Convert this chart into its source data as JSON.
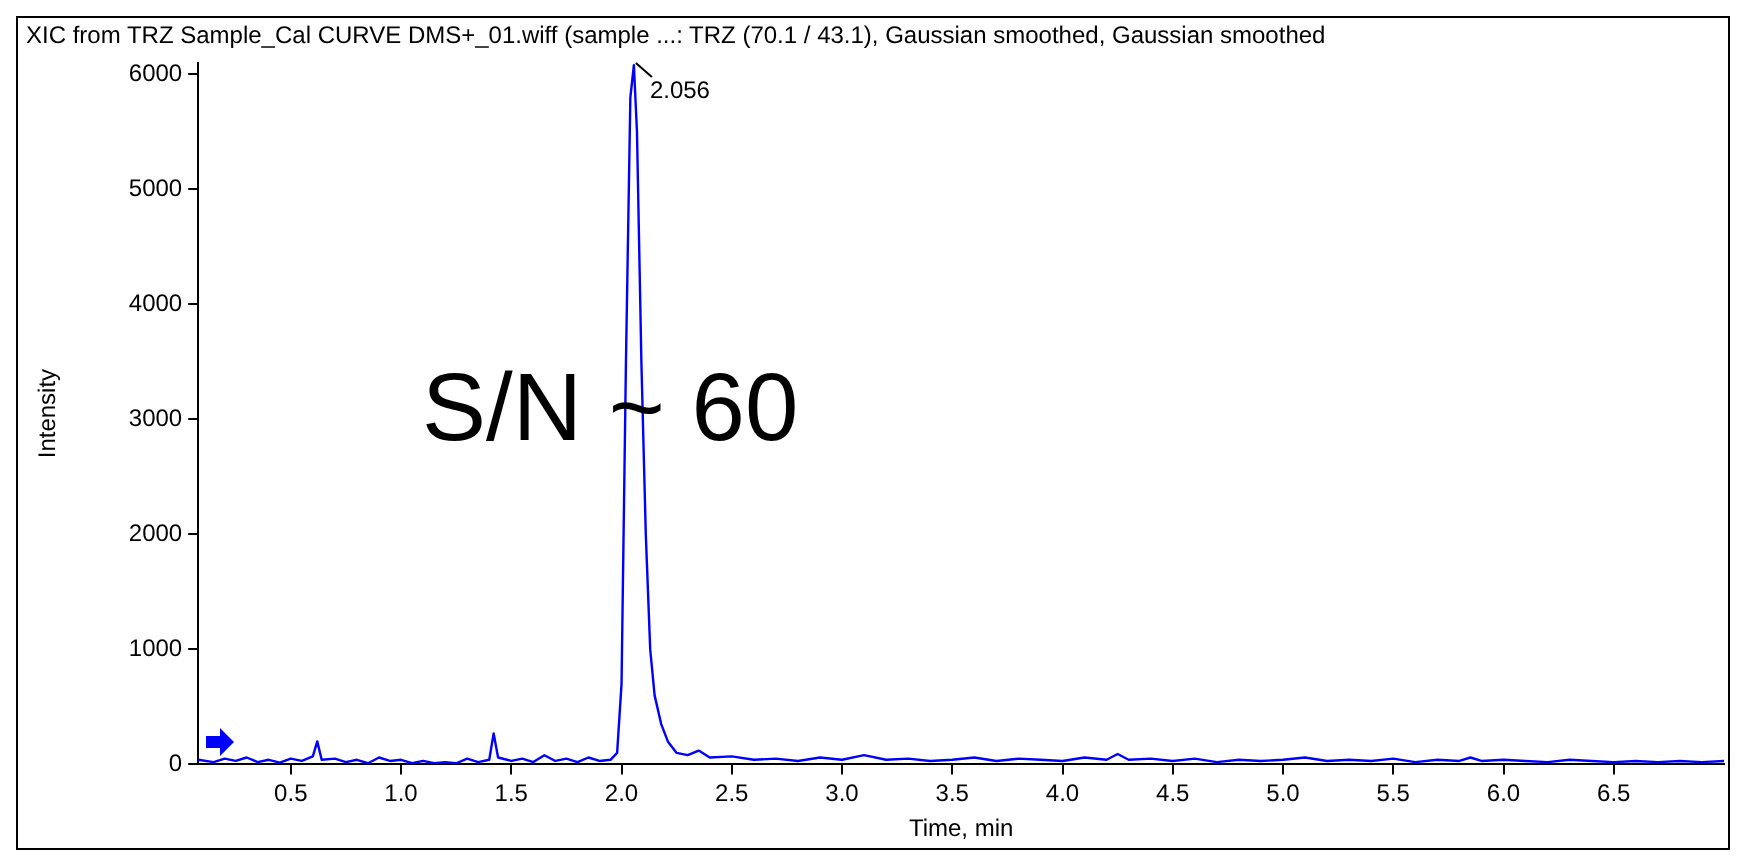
{
  "chart_data": {
    "type": "line",
    "title": "XIC from TRZ Sample_Cal CURVE DMS+_01.wiff (sample ...: TRZ (70.1 / 43.1), Gaussian smoothed, Gaussian smoothed",
    "xlabel": "Time, min",
    "ylabel": "Intensity",
    "x": [
      0.08,
      0.15,
      0.2,
      0.25,
      0.3,
      0.35,
      0.4,
      0.45,
      0.5,
      0.55,
      0.6,
      0.62,
      0.64,
      0.7,
      0.75,
      0.8,
      0.85,
      0.9,
      0.95,
      1.0,
      1.05,
      1.1,
      1.15,
      1.2,
      1.25,
      1.3,
      1.35,
      1.4,
      1.42,
      1.44,
      1.5,
      1.55,
      1.6,
      1.65,
      1.7,
      1.75,
      1.8,
      1.85,
      1.9,
      1.95,
      1.98,
      2.0,
      2.02,
      2.04,
      2.056,
      2.07,
      2.09,
      2.11,
      2.13,
      2.15,
      2.18,
      2.21,
      2.25,
      2.3,
      2.35,
      2.4,
      2.5,
      2.6,
      2.7,
      2.8,
      2.9,
      3.0,
      3.1,
      3.2,
      3.3,
      3.4,
      3.5,
      3.6,
      3.7,
      3.8,
      3.9,
      4.0,
      4.1,
      4.2,
      4.25,
      4.3,
      4.4,
      4.5,
      4.6,
      4.7,
      4.8,
      4.9,
      5.0,
      5.1,
      5.2,
      5.3,
      5.4,
      5.5,
      5.6,
      5.7,
      5.8,
      5.85,
      5.9,
      6.0,
      6.1,
      6.2,
      6.3,
      6.4,
      6.5,
      6.6,
      6.7,
      6.8,
      6.9,
      7.0
    ],
    "series": [
      {
        "color": "#0000ff",
        "values": [
          40,
          20,
          50,
          30,
          60,
          20,
          40,
          15,
          50,
          30,
          70,
          200,
          40,
          50,
          20,
          40,
          10,
          60,
          30,
          40,
          10,
          30,
          10,
          20,
          10,
          50,
          20,
          40,
          270,
          60,
          30,
          50,
          20,
          80,
          30,
          50,
          20,
          60,
          30,
          40,
          100,
          700,
          3500,
          5800,
          6080,
          5500,
          3500,
          2000,
          1000,
          600,
          350,
          200,
          100,
          80,
          120,
          60,
          70,
          40,
          50,
          30,
          60,
          40,
          80,
          40,
          50,
          30,
          40,
          60,
          30,
          50,
          40,
          30,
          60,
          40,
          90,
          40,
          50,
          30,
          50,
          20,
          40,
          30,
          40,
          60,
          30,
          40,
          30,
          50,
          20,
          40,
          30,
          60,
          30,
          40,
          30,
          20,
          40,
          30,
          20,
          30,
          20,
          30,
          20,
          30
        ]
      }
    ],
    "xlim": [
      0.08,
      7.0
    ],
    "ylim": [
      0,
      6100
    ],
    "xticks": [
      0.5,
      {
        "value": 1,
        "label": "1.0"
      },
      1.5,
      {
        "value": 2,
        "label": "2.0"
      },
      2.5,
      {
        "value": 3,
        "label": "3.0"
      },
      3.5,
      {
        "value": 4,
        "label": "4.0"
      },
      4.5,
      {
        "value": 5,
        "label": "5.0"
      },
      5.5,
      {
        "value": 6,
        "label": "6.0"
      },
      6.5
    ],
    "yticks": [
      0,
      1000,
      2000,
      3000,
      4000,
      5000,
      6000
    ],
    "annotations": [
      {
        "text": "2.056",
        "x": 2.056,
        "y": 6080
      },
      "S/N ~ 60"
    ]
  }
}
